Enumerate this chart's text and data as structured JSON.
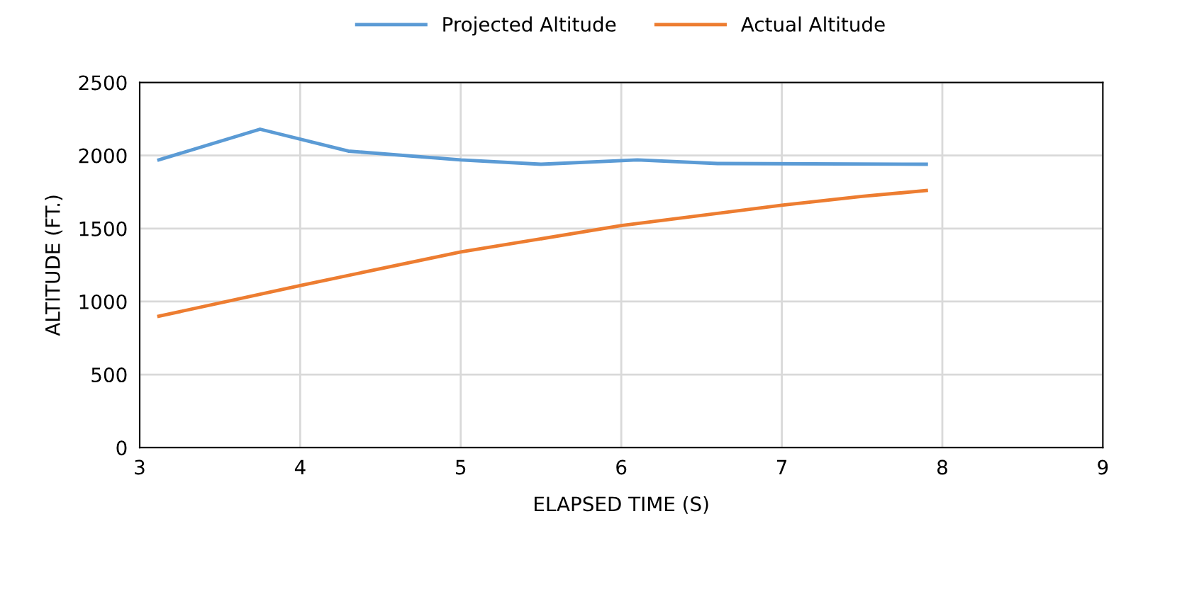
{
  "chart_data": {
    "type": "line",
    "xlabel": "ELAPSED TIME (S)",
    "ylabel": "ALTITUDE (FT.)",
    "xlim": [
      3,
      9
    ],
    "xticks": [
      3,
      4,
      5,
      6,
      7,
      8,
      9
    ],
    "ylim": [
      0,
      2500
    ],
    "yticks": [
      0,
      500,
      1000,
      1500,
      2000,
      2500
    ],
    "grid": true,
    "legend": "top",
    "marker": "none",
    "line_style": "solid",
    "series": [
      {
        "name": "Projected Altitude",
        "color": "#5b9bd5",
        "x": [
          3.12,
          3.75,
          4.3,
          5.0,
          5.5,
          6.1,
          6.6,
          7.9
        ],
        "values": [
          1970,
          2180,
          2030,
          1970,
          1940,
          1970,
          1945,
          1940
        ]
      },
      {
        "name": "Actual Altitude",
        "color": "#ed7d31",
        "x": [
          3.12,
          4.0,
          5.0,
          6.0,
          7.0,
          7.5,
          7.9
        ],
        "values": [
          900,
          1110,
          1340,
          1520,
          1660,
          1720,
          1760
        ]
      }
    ]
  }
}
